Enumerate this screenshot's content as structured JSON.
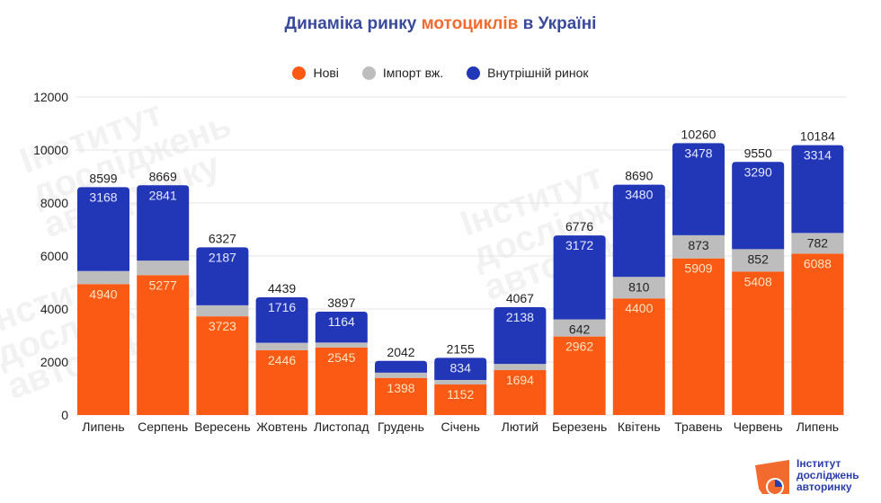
{
  "title": {
    "part1": "Динаміка ринку ",
    "highlight": "мотоциклів",
    "part2": " в Україні"
  },
  "watermark_text": [
    "Інститут",
    "досліджень",
    "авторинку"
  ],
  "logo": {
    "lines": [
      "Інститут",
      "досліджень",
      "авторинку"
    ]
  },
  "colors": {
    "new": "#fa5a14",
    "import": "#bdbdbd",
    "domestic": "#2237b8",
    "title": "#3a4a9a",
    "accent": "#f26a2e"
  },
  "chart_data": {
    "type": "bar",
    "stacked": true,
    "title": "Динаміка ринку мотоциклів в Україні",
    "xlabel": "",
    "ylabel": "",
    "ylim": [
      0,
      12000
    ],
    "yticks": [
      0,
      2000,
      4000,
      6000,
      8000,
      10000,
      12000
    ],
    "grid": true,
    "legend_position": "top-center",
    "categories": [
      "Липень",
      "Серпень",
      "Вересень",
      "Жовтень",
      "Листопад",
      "Грудень",
      "Січень",
      "Лютий",
      "Березень",
      "Квітень",
      "Травень",
      "Червень",
      "Липень"
    ],
    "totals": [
      8599,
      8669,
      6327,
      4439,
      3897,
      2042,
      2155,
      4067,
      6776,
      8690,
      10260,
      9550,
      10184
    ],
    "series": [
      {
        "name": "Нові",
        "key": "new",
        "values": [
          4940,
          5277,
          3723,
          2446,
          2545,
          1398,
          1152,
          1694,
          2962,
          4400,
          5909,
          5408,
          6088
        ],
        "labels": [
          "4940",
          "5277",
          "3723",
          "2446",
          "2545",
          "1398",
          "1152",
          "1694",
          "2962",
          "4400",
          "5909",
          "5408",
          "6088"
        ]
      },
      {
        "name": "Імпорт вж.",
        "key": "import",
        "values": [
          491,
          551,
          417,
          277,
          188,
          200,
          169,
          235,
          642,
          810,
          873,
          852,
          782
        ],
        "labels": [
          "",
          "",
          "",
          "",
          "",
          "",
          "",
          "",
          "642",
          "810",
          "873",
          "852",
          "782"
        ]
      },
      {
        "name": "Внутрішній ринок",
        "key": "domestic",
        "values": [
          3168,
          2841,
          2187,
          1716,
          1164,
          444,
          834,
          2138,
          3172,
          3480,
          3478,
          3290,
          3314
        ],
        "labels": [
          "3168",
          "2841",
          "2187",
          "1716",
          "1164",
          "",
          "834",
          "2138",
          "3172",
          "3480",
          "3478",
          "3290",
          "3314"
        ]
      }
    ]
  }
}
